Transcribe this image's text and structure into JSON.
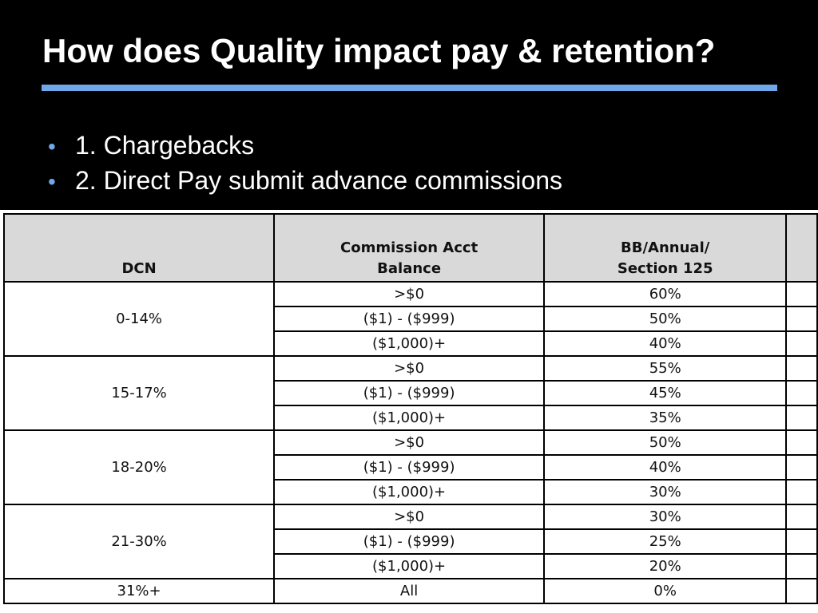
{
  "slide": {
    "title": "How does Quality impact pay & retention?",
    "bullets": [
      "1. Chargebacks",
      "2. Direct Pay submit advance commissions"
    ]
  },
  "table": {
    "headers": {
      "dcn": "DCN",
      "balance_line1": "Commission Acct",
      "balance_line2": "Balance",
      "bb_line1": "BB/Annual/",
      "bb_line2": "Section 125"
    },
    "groups": [
      {
        "dcn": "0-14%",
        "rows": [
          {
            "balance": ">$0",
            "rate": "60%"
          },
          {
            "balance": "($1) - ($999)",
            "rate": "50%"
          },
          {
            "balance": "($1,000)+",
            "rate": "40%"
          }
        ]
      },
      {
        "dcn": "15-17%",
        "rows": [
          {
            "balance": ">$0",
            "rate": "55%"
          },
          {
            "balance": "($1) - ($999)",
            "rate": "45%"
          },
          {
            "balance": "($1,000)+",
            "rate": "35%"
          }
        ]
      },
      {
        "dcn": "18-20%",
        "rows": [
          {
            "balance": ">$0",
            "rate": "50%"
          },
          {
            "balance": "($1) - ($999)",
            "rate": "40%"
          },
          {
            "balance": "($1,000)+",
            "rate": "30%"
          }
        ]
      },
      {
        "dcn": "21-30%",
        "rows": [
          {
            "balance": ">$0",
            "rate": "30%"
          },
          {
            "balance": "($1) - ($999)",
            "rate": "25%"
          },
          {
            "balance": "($1,000)+",
            "rate": "20%"
          }
        ]
      },
      {
        "dcn": "31%+",
        "rows": [
          {
            "balance": "All",
            "rate": "0%"
          }
        ]
      }
    ]
  },
  "colors": {
    "background": "#000000",
    "title_rule": "#6fa8e8",
    "header_fill": "#d9d9d9"
  }
}
